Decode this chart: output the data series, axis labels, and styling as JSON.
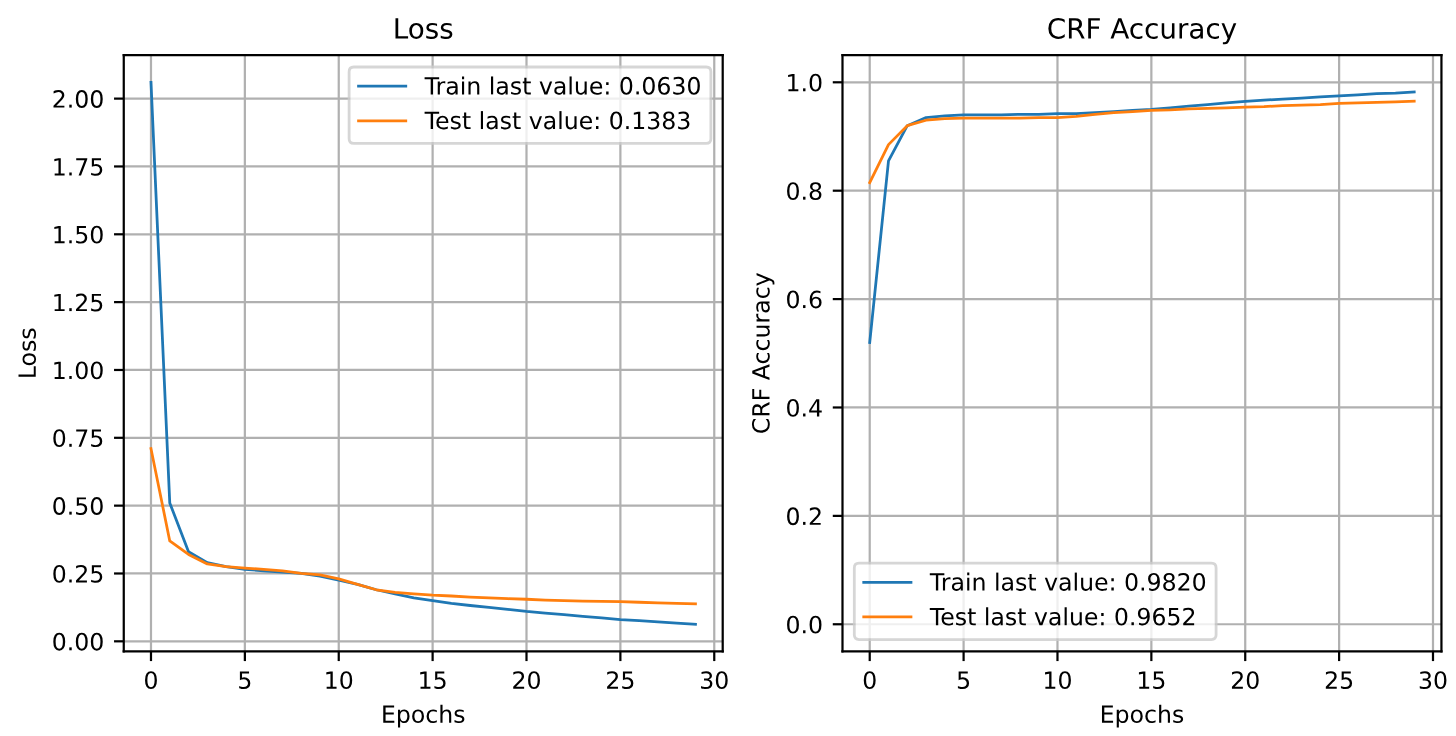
{
  "chart_data": [
    {
      "type": "line",
      "title": "Loss",
      "xlabel": "Epochs",
      "ylabel": "Loss",
      "x": [
        0,
        1,
        2,
        3,
        4,
        5,
        6,
        7,
        8,
        9,
        10,
        11,
        12,
        13,
        14,
        15,
        16,
        17,
        18,
        19,
        20,
        21,
        22,
        23,
        24,
        25,
        26,
        27,
        28,
        29
      ],
      "series": [
        {
          "name": "Train last value: 0.0630",
          "color": "#1f77b4",
          "values": [
            2.06,
            0.51,
            0.33,
            0.29,
            0.275,
            0.265,
            0.26,
            0.255,
            0.25,
            0.24,
            0.225,
            0.21,
            0.19,
            0.175,
            0.16,
            0.15,
            0.14,
            0.132,
            0.125,
            0.118,
            0.11,
            0.104,
            0.098,
            0.092,
            0.086,
            0.08,
            0.076,
            0.072,
            0.067,
            0.063
          ]
        },
        {
          "name": "Test last value: 0.1383",
          "color": "#ff7f0e",
          "values": [
            0.71,
            0.37,
            0.32,
            0.285,
            0.275,
            0.27,
            0.265,
            0.26,
            0.25,
            0.245,
            0.23,
            0.21,
            0.19,
            0.18,
            0.175,
            0.17,
            0.167,
            0.163,
            0.16,
            0.157,
            0.155,
            0.152,
            0.15,
            0.148,
            0.147,
            0.146,
            0.144,
            0.142,
            0.14,
            0.1383
          ]
        }
      ],
      "xlim": [
        -1.45,
        30.45
      ],
      "xticks": [
        0,
        5,
        10,
        15,
        20,
        25,
        30
      ],
      "ylim": [
        -0.037,
        2.16
      ],
      "yticks": [
        {
          "value": 0,
          "label": "0.00"
        },
        {
          "value": 0.25,
          "label": "0.25"
        },
        {
          "value": 0.5,
          "label": "0.50"
        },
        {
          "value": 0.75,
          "label": "0.75"
        },
        {
          "value": 1,
          "label": "1.00"
        },
        {
          "value": 1.25,
          "label": "1.25"
        },
        {
          "value": 1.5,
          "label": "1.50"
        },
        {
          "value": 1.75,
          "label": "1.75"
        },
        {
          "value": 2,
          "label": "2.00"
        }
      ],
      "grid": true,
      "legend": "top right",
      "line_style": "solid",
      "marker": "none"
    },
    {
      "type": "line",
      "title": "CRF Accuracy",
      "xlabel": "Epochs",
      "ylabel": "CRF Accuracy",
      "x": [
        0,
        1,
        2,
        3,
        4,
        5,
        6,
        7,
        8,
        9,
        10,
        11,
        12,
        13,
        14,
        15,
        16,
        17,
        18,
        19,
        20,
        21,
        22,
        23,
        24,
        25,
        26,
        27,
        28,
        29
      ],
      "series": [
        {
          "name": "Train last value: 0.9820",
          "color": "#1f77b4",
          "values": [
            0.52,
            0.855,
            0.92,
            0.935,
            0.938,
            0.94,
            0.94,
            0.94,
            0.941,
            0.941,
            0.942,
            0.942,
            0.944,
            0.946,
            0.948,
            0.95,
            0.953,
            0.956,
            0.959,
            0.962,
            0.965,
            0.967,
            0.969,
            0.971,
            0.973,
            0.975,
            0.977,
            0.979,
            0.98,
            0.982
          ]
        },
        {
          "name": "Test last value: 0.9652",
          "color": "#ff7f0e",
          "values": [
            0.815,
            0.885,
            0.92,
            0.93,
            0.933,
            0.934,
            0.934,
            0.934,
            0.934,
            0.935,
            0.935,
            0.937,
            0.941,
            0.944,
            0.946,
            0.948,
            0.949,
            0.951,
            0.952,
            0.953,
            0.954,
            0.955,
            0.957,
            0.958,
            0.959,
            0.961,
            0.962,
            0.963,
            0.964,
            0.9652
          ]
        }
      ],
      "xlim": [
        -1.45,
        30.45
      ],
      "xticks": [
        0,
        5,
        10,
        15,
        20,
        25,
        30
      ],
      "ylim": [
        -0.05,
        1.05
      ],
      "yticks": [
        {
          "value": 0,
          "label": "0.0"
        },
        {
          "value": 0.2,
          "label": "0.2"
        },
        {
          "value": 0.4,
          "label": "0.4"
        },
        {
          "value": 0.6,
          "label": "0.6"
        },
        {
          "value": 0.8,
          "label": "0.8"
        },
        {
          "value": 1,
          "label": "1.0"
        }
      ],
      "grid": true,
      "legend": "bottom left",
      "line_style": "solid",
      "marker": "none"
    }
  ]
}
